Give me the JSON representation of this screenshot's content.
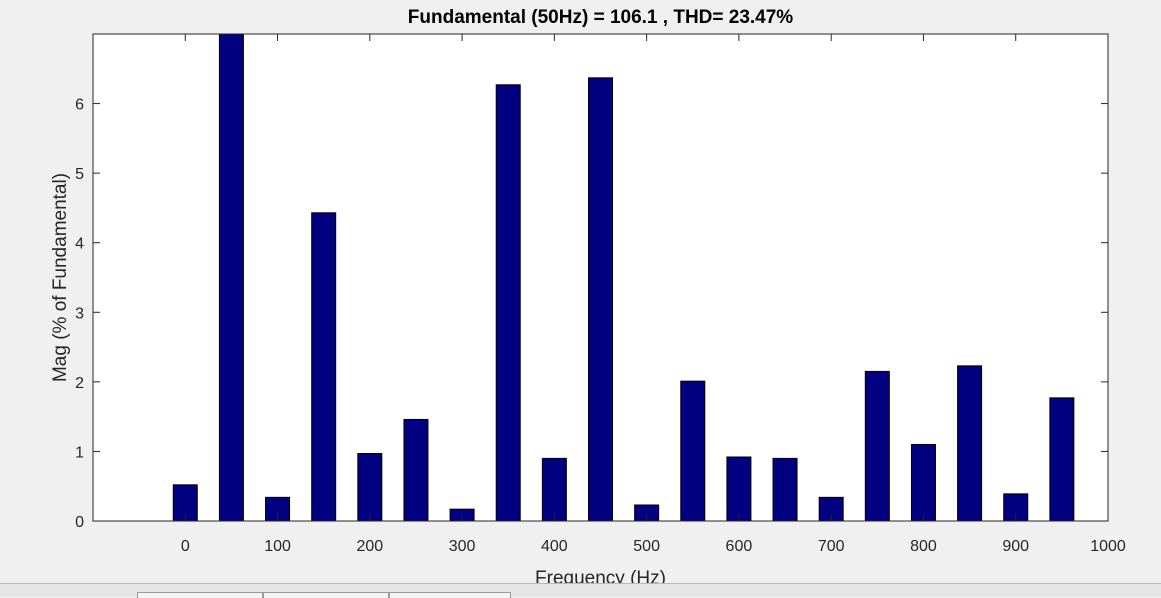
{
  "chart_data": {
    "type": "bar",
    "title": "Fundamental (50Hz) = 106.1 , THD= 23.47%",
    "xlabel": "Frequency (Hz)",
    "ylabel": "Mag (% of Fundamental)",
    "xlim": [
      -100,
      1000
    ],
    "ylim": [
      0,
      7
    ],
    "xticks": [
      0,
      100,
      200,
      300,
      400,
      500,
      600,
      700,
      800,
      900,
      1000
    ],
    "yticks": [
      0,
      1,
      2,
      3,
      4,
      5,
      6
    ],
    "grid": false,
    "bar_color": "#000080",
    "x": [
      0,
      50,
      100,
      150,
      200,
      250,
      300,
      350,
      400,
      450,
      500,
      550,
      600,
      650,
      700,
      750,
      800,
      850,
      900,
      950
    ],
    "values": [
      0.52,
      7.0,
      0.34,
      4.43,
      0.97,
      1.46,
      0.17,
      6.27,
      0.9,
      6.37,
      0.23,
      2.01,
      0.92,
      0.9,
      0.34,
      2.15,
      1.1,
      2.23,
      0.39,
      1.77
    ]
  }
}
